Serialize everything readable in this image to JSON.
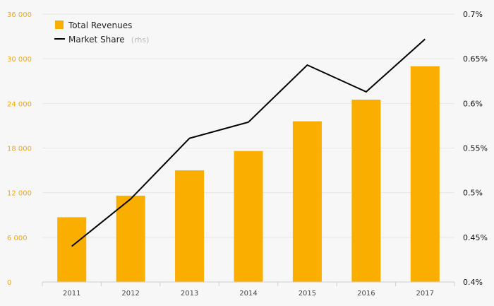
{
  "chart_data": {
    "type": "bar",
    "categories": [
      "2011",
      "2012",
      "2013",
      "2014",
      "2015",
      "2016",
      "2017"
    ],
    "series": [
      {
        "name": "Total Revenues",
        "type": "bar",
        "axis": "left",
        "values": [
          8700,
          11600,
          15000,
          17600,
          21600,
          24500,
          29000
        ]
      },
      {
        "name": "Market Share",
        "type": "line",
        "axis": "right",
        "values": [
          0.44,
          0.493,
          0.561,
          0.579,
          0.643,
          0.613,
          0.672
        ]
      }
    ],
    "left_axis": {
      "ylim": [
        0,
        36000
      ],
      "ticks": [
        0,
        6000,
        12000,
        18000,
        24000,
        30000,
        36000
      ],
      "tick_labels": [
        "0",
        "6 000",
        "12 000",
        "18 000",
        "24 000",
        "30 000",
        "36 000"
      ]
    },
    "right_axis": {
      "ylim": [
        0.4,
        0.7
      ],
      "ticks": [
        0.4,
        0.45,
        0.5,
        0.55,
        0.6,
        0.65,
        0.7
      ],
      "tick_labels": [
        "0.4%",
        "0.45%",
        "0.5%",
        "0.55%",
        "0.6%",
        "0.65%",
        "0.7%"
      ]
    },
    "legend": {
      "placement": "top-left",
      "items": [
        {
          "label": "Total Revenues",
          "suffix": ""
        },
        {
          "label": "Market Share",
          "suffix": "(rhs)"
        }
      ]
    },
    "grid": true,
    "colors": {
      "bar": "#f9ae00",
      "line": "#000000",
      "left_tick_text": "#f5a800",
      "grid": "#e6e6e6",
      "background": "#f7f7f7"
    }
  }
}
